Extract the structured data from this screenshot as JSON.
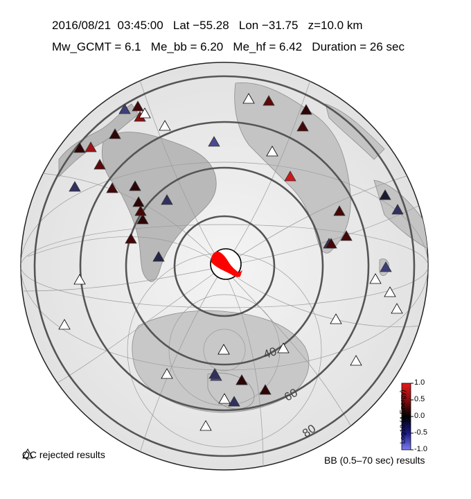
{
  "header": {
    "line1": "2016/08/21  03:45:00   Lat −55.28   Lon −31.75   z=10.0 km",
    "line2": "Mw_GCMT = 6.1   Me_bb = 6.20   Me_hf = 6.42   Duration = 26 sec"
  },
  "event": {
    "date": "2016/08/21",
    "time": "03:45:00",
    "lat": -55.28,
    "lon": -31.75,
    "depth_km": 10.0,
    "Mw_GCMT": 6.1,
    "Me_bb": 6.2,
    "Me_hf": 6.42,
    "duration_sec": 26
  },
  "distance_rings": {
    "labels": [
      "40",
      "60",
      "80"
    ]
  },
  "legend": {
    "qc_rejected": "QC rejected results",
    "bb_results": "BB (0.5–70 sec) results"
  },
  "colorbar": {
    "title": "Log10 (Δ Energy)",
    "ticks": [
      "1.0",
      "0.5",
      "0.0",
      "-0.5",
      "-1.0"
    ],
    "colors": {
      "high": "#e41a1c",
      "mid": "#000000",
      "low": "#7b7bf0"
    }
  },
  "stations": [
    {
      "v": 0.3
    },
    {
      "v": 0.6
    },
    {
      "v": 0.2
    },
    {
      "v": 0.2
    },
    {
      "v": 0.7
    },
    {
      "v": -0.5
    },
    {
      "v": -0.6
    },
    {
      "v": 0.4
    },
    {
      "v": 0.3
    },
    {
      "v": 0.2
    },
    {
      "v": 0.2
    },
    {
      "v": -0.4
    },
    {
      "v": 0.2
    },
    {
      "v": 0.3
    },
    {
      "v": 0.3
    },
    {
      "v": -0.3
    },
    {
      "v": 0.2
    },
    {
      "v": 0.3
    },
    {
      "v": 0.4
    },
    {
      "v": -0.4
    },
    {
      "v": 0.3
    },
    {
      "v": 0.3
    },
    {
      "v": -0.2
    },
    {
      "v": -0.4
    },
    {
      "v": -0.5
    },
    {
      "v": -0.4
    },
    {
      "v": 0.9
    },
    {
      "v": 0.3
    },
    {
      "v": -0.6
    },
    {
      "v": 0.3
    },
    {
      "v": -0.4
    },
    {
      "v": 0.2
    },
    {
      "v": 0.2
    },
    {
      "v": -0.4
    },
    {
      "v": 0.3
    }
  ],
  "qc_rejected_count": 16
}
